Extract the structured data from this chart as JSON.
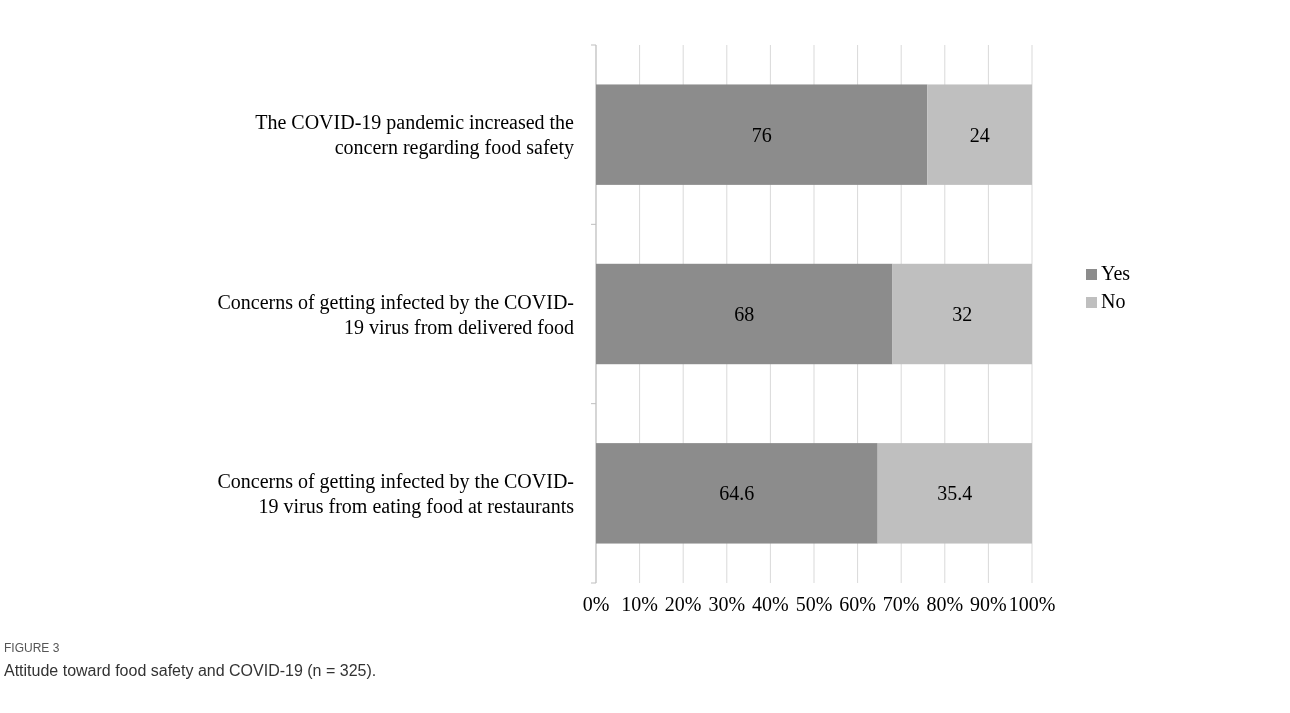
{
  "chart_data": {
    "type": "bar",
    "orientation": "horizontal",
    "stacked": true,
    "categories": [
      "The COVID-19 pandemic increased the concern regarding food safety",
      "Concerns of getting infected by the COVID-19 virus from delivered food",
      "Concerns of getting infected by the COVID-19 virus from eating food at restaurants"
    ],
    "series": [
      {
        "name": "Yes",
        "color": "#8c8c8c",
        "values": [
          76,
          68,
          64.6
        ]
      },
      {
        "name": "No",
        "color": "#bfbfbf",
        "values": [
          24,
          32,
          35.4
        ]
      }
    ],
    "xlim": [
      0,
      100
    ],
    "xticks": [
      {
        "value": 0,
        "label": "0%"
      },
      {
        "value": 10,
        "label": "10%"
      },
      {
        "value": 20,
        "label": "20%"
      },
      {
        "value": 30,
        "label": "30%"
      },
      {
        "value": 40,
        "label": "40%"
      },
      {
        "value": 50,
        "label": "50%"
      },
      {
        "value": 60,
        "label": "60%"
      },
      {
        "value": 70,
        "label": "70%"
      },
      {
        "value": 80,
        "label": "80%"
      },
      {
        "value": 90,
        "label": "90%"
      },
      {
        "value": 100,
        "label": "100%"
      }
    ],
    "grid": "x",
    "legend": "right",
    "data_labels": true,
    "annotations": [
      "FIGURE 3",
      "Attitude toward food safety and COVID-19 (n = 325)."
    ]
  }
}
